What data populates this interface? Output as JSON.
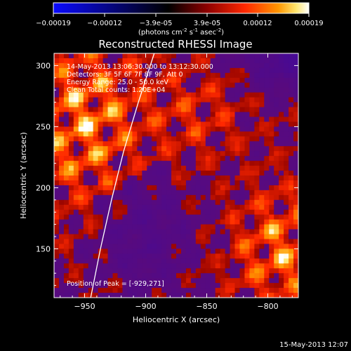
{
  "colorbar": {
    "ticks": [
      "-0.00019",
      "-0.00012",
      "-3.9e-05",
      "3.9e-05",
      "0.00012",
      "0.00019"
    ],
    "units_base": "(photons cm",
    "units_exp1": "-2",
    "units_mid": " s",
    "units_exp2": "-1",
    "units_end": " asec",
    "units_exp3": "-2",
    "units_close": ")"
  },
  "footer": {
    "timestamp": "15-May-2013 12:07"
  },
  "chart_data": {
    "type": "heatmap",
    "title": "Reconstructed RHESSI Image",
    "xlabel": "Heliocentric X (arcsec)",
    "ylabel": "Heliocentric Y (arcsec)",
    "xlim": [
      -975,
      -775
    ],
    "ylim": [
      110,
      310
    ],
    "xticks": [
      -950,
      -900,
      -850,
      -800
    ],
    "yticks": [
      150,
      200,
      250,
      300
    ],
    "xtick_labels": [
      "-950",
      "-900",
      "-850",
      "-800"
    ],
    "ytick_labels": [
      "150",
      "200",
      "250",
      "300"
    ],
    "colormap": [
      "#0a0aff",
      "#000000",
      "#8c0000",
      "#ff2800",
      "#ff9600",
      "#ffe66e",
      "#ffffff"
    ],
    "value_range": [
      -0.00019,
      0.00019
    ],
    "annotations": [
      "14-May-2013 13:06:30.000 to 13:12:30.000",
      "Detectors: 3F 5F 6F 7F 8F 9F, Att 0",
      "Energy Range: 25.0 - 50.0 keV",
      "Clean  Total counts: 1.20E+04"
    ],
    "peak_label": "Position of Peak = [-929,271]",
    "peak": [
      -929,
      271
    ],
    "limb_curve": [
      [
        -945,
        110
      ],
      [
        -937,
        150
      ],
      [
        -928,
        190
      ],
      [
        -918,
        230
      ],
      [
        -906,
        270
      ],
      [
        -893,
        310
      ]
    ]
  }
}
